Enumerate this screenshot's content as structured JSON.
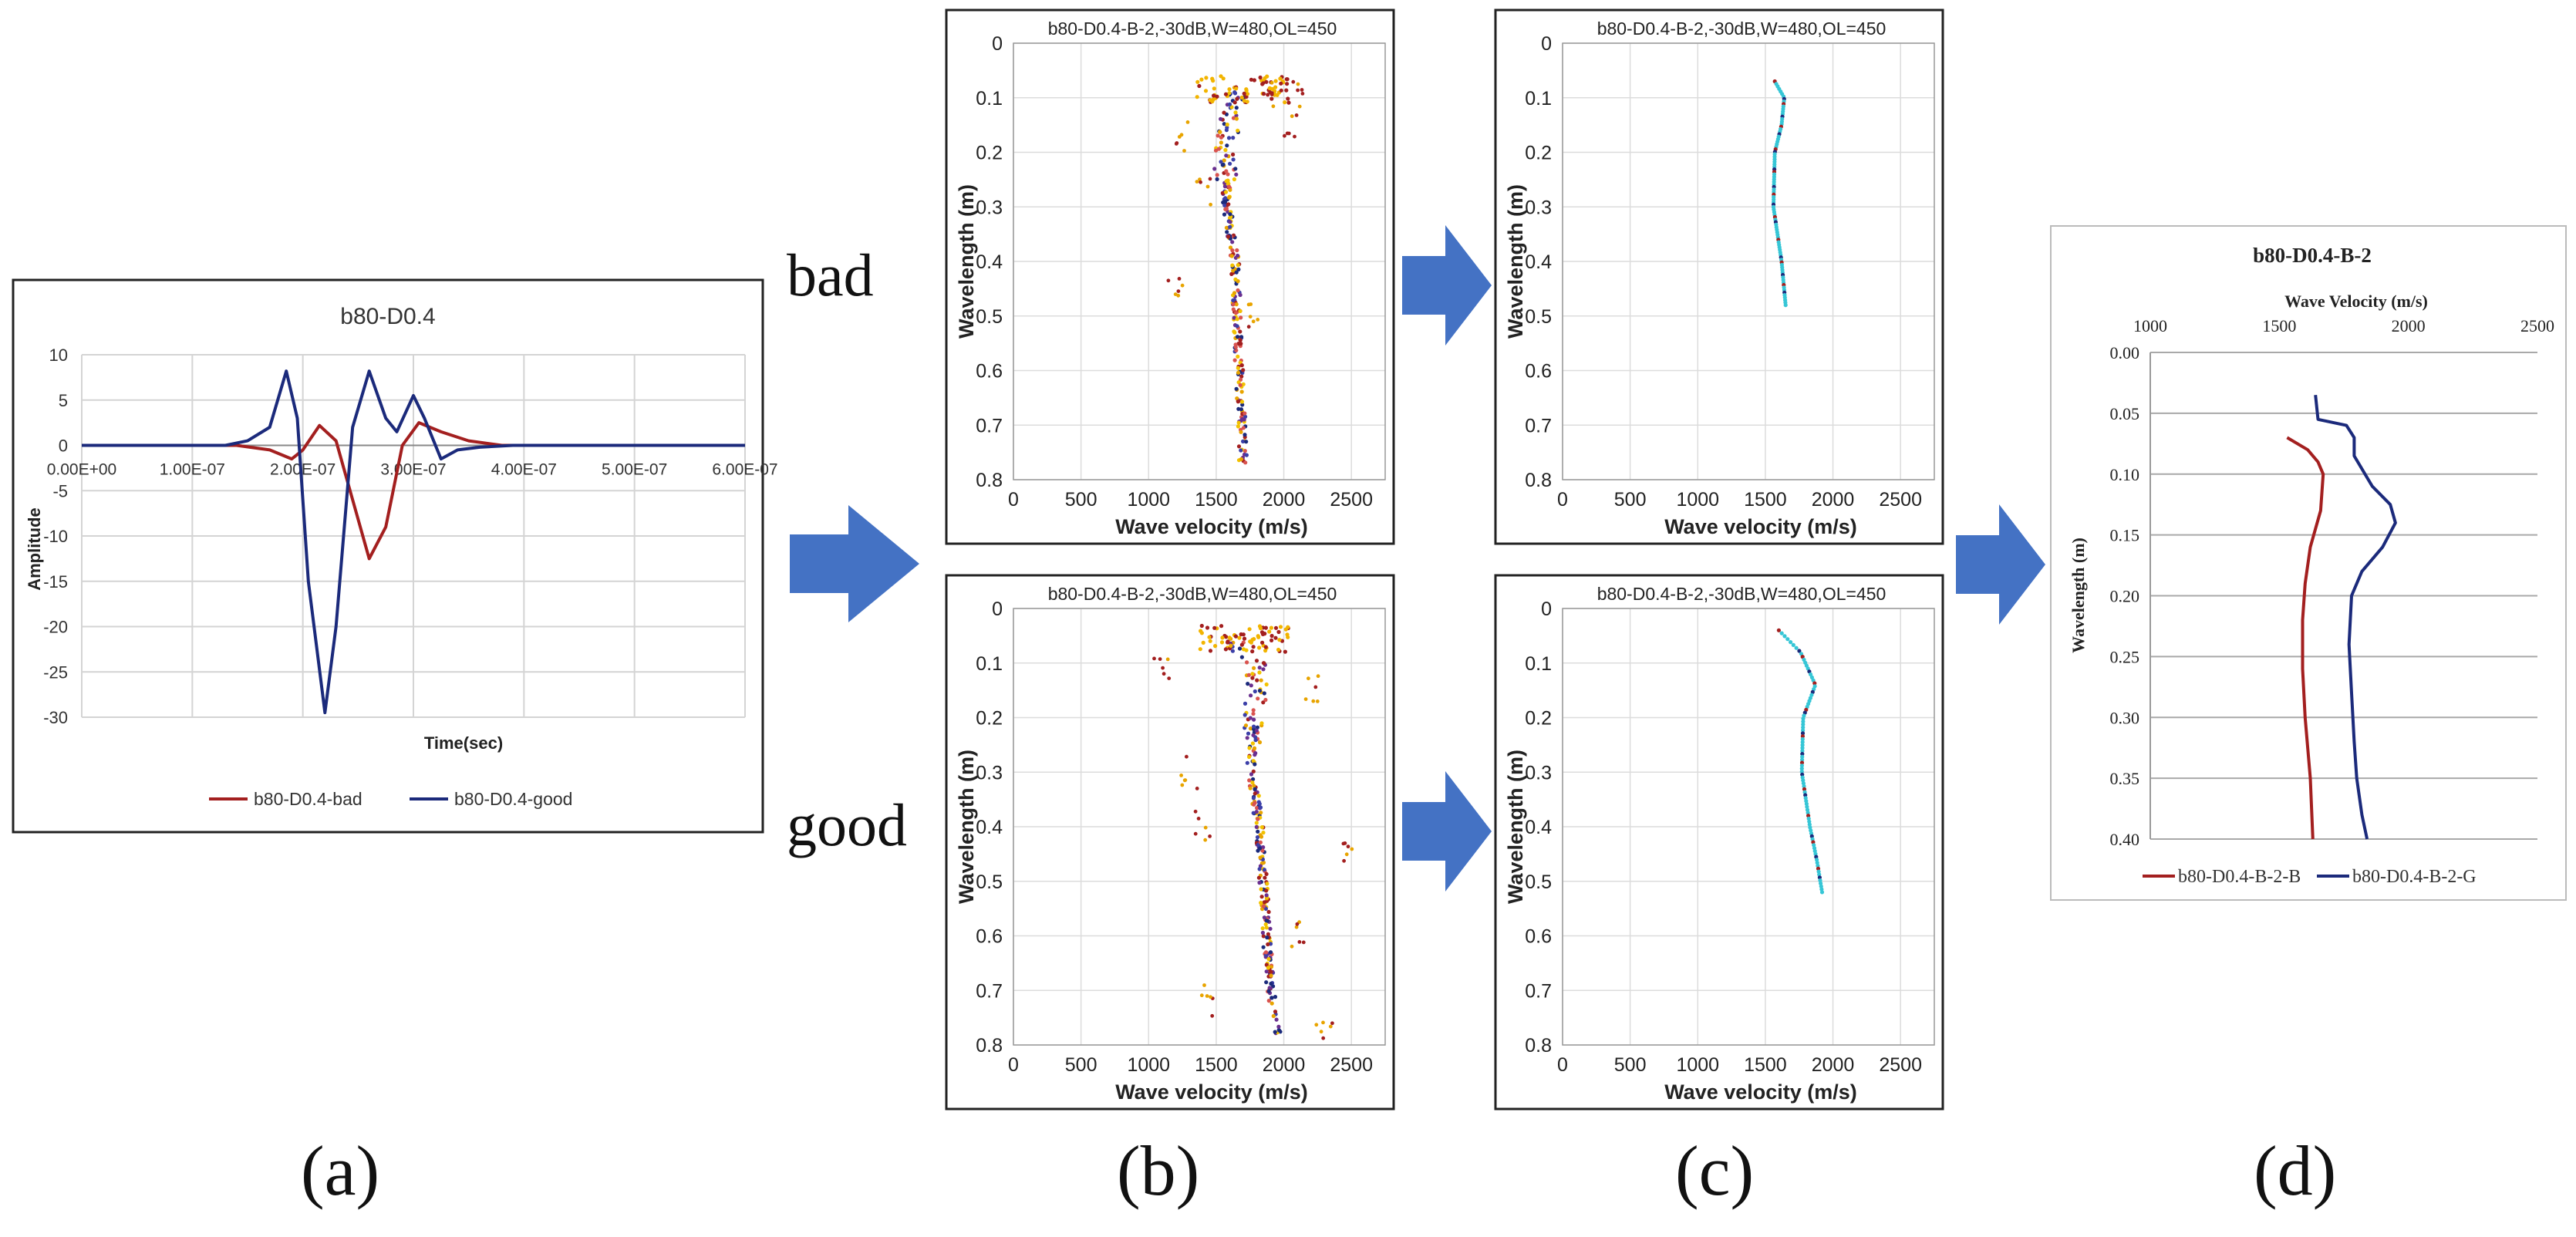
{
  "labels": {
    "bad": "bad",
    "good": "good",
    "panels": [
      "(a)",
      "(b)",
      "(c)",
      "(d)"
    ]
  },
  "colors": {
    "bad_line": "#a31f1f",
    "good_line": "#1b2a7b",
    "arrow": "#4472c4",
    "grid": "#d0d0d0",
    "cyan": "#36c6d6"
  },
  "chart_data": [
    {
      "id": "a",
      "type": "line",
      "title": "b80-D0.4",
      "xlabel": "Time(sec)",
      "ylabel": "Amplitude",
      "xlim": [
        0,
        6e-07
      ],
      "ylim": [
        -30,
        10
      ],
      "xticks": [
        "0.00E+00",
        "1.00E-07",
        "2.00E-07",
        "3.00E-07",
        "4.00E-07",
        "5.00E-07",
        "6.00E-07"
      ],
      "yticks": [
        "10",
        "5",
        "0",
        "-5",
        "-10",
        "-15",
        "-20",
        "-25",
        "-30"
      ],
      "series": [
        {
          "name": "b80-D0.4-bad",
          "x": [
            0,
            1.4e-07,
            1.7e-07,
            1.9e-07,
            2e-07,
            2.15e-07,
            2.3e-07,
            2.45e-07,
            2.6e-07,
            2.75e-07,
            2.9e-07,
            3.05e-07,
            3.25e-07,
            3.5e-07,
            3.8e-07,
            4e-07,
            6e-07
          ],
          "y": [
            0,
            0,
            -0.5,
            -1.5,
            -0.5,
            2.2,
            0.5,
            -6,
            -12.5,
            -9,
            0,
            2.5,
            1.5,
            0.5,
            0,
            0,
            0
          ]
        },
        {
          "name": "b80-D0.4-good",
          "x": [
            0,
            1.3e-07,
            1.5e-07,
            1.7e-07,
            1.85e-07,
            1.95e-07,
            2.05e-07,
            2.2e-07,
            2.3e-07,
            2.45e-07,
            2.6e-07,
            2.75e-07,
            2.85e-07,
            3e-07,
            3.1e-07,
            3.25e-07,
            3.4e-07,
            3.6e-07,
            3.9e-07,
            6e-07
          ],
          "y": [
            0,
            0,
            0.5,
            2,
            8.2,
            3,
            -15,
            -29.5,
            -20,
            2,
            8.2,
            3,
            1.5,
            5.5,
            3,
            -1.5,
            -0.5,
            -0.2,
            0,
            0
          ]
        }
      ]
    },
    {
      "id": "b-bad",
      "type": "scatter",
      "title": "b80-D0.4-B-2,-30dB,W=480,OL=450",
      "xlabel": "Wave velocity (m/s)",
      "ylabel": "Wavelength (m)",
      "xlim": [
        0,
        2750
      ],
      "ylim": [
        0,
        0.8
      ],
      "xticks": [
        "0",
        "500",
        "1000",
        "1500",
        "2000",
        "2500"
      ],
      "yticks": [
        "0",
        "0.1",
        "0.2",
        "0.3",
        "0.4",
        "0.5",
        "0.6",
        "0.7",
        "0.8"
      ],
      "trend": [
        [
          1680,
          0.08
        ],
        [
          1600,
          0.14
        ],
        [
          1560,
          0.2
        ],
        [
          1580,
          0.3
        ],
        [
          1640,
          0.4
        ],
        [
          1660,
          0.55
        ],
        [
          1690,
          0.7
        ],
        [
          1700,
          0.78
        ]
      ],
      "fan": [
        [
          1250,
          0.17
        ],
        [
          1200,
          0.44
        ],
        [
          2050,
          0.16
        ],
        [
          1900,
          0.09
        ],
        [
          2100,
          0.1
        ],
        [
          1400,
          0.27
        ],
        [
          1800,
          0.5
        ]
      ]
    },
    {
      "id": "c-bad",
      "type": "scatter",
      "title": "b80-D0.4-B-2,-30dB,W=480,OL=450",
      "xlabel": "Wave velocity (m/s)",
      "ylabel": "Wavelength (m)",
      "xlim": [
        0,
        2750
      ],
      "ylim": [
        0,
        0.8
      ],
      "xticks": [
        "0",
        "500",
        "1000",
        "1500",
        "2000",
        "2500"
      ],
      "yticks": [
        "0",
        "0.1",
        "0.2",
        "0.3",
        "0.4",
        "0.5",
        "0.6",
        "0.7",
        "0.8"
      ],
      "trend": [
        [
          1570,
          0.07
        ],
        [
          1640,
          0.1
        ],
        [
          1620,
          0.15
        ],
        [
          1570,
          0.2
        ],
        [
          1560,
          0.3
        ],
        [
          1620,
          0.4
        ],
        [
          1650,
          0.48
        ]
      ]
    },
    {
      "id": "b-good",
      "type": "scatter",
      "title": "b80-D0.4-B-2,-30dB,W=480,OL=450",
      "xlabel": "Wave velocity (m/s)",
      "ylabel": "Wavelength (m)",
      "xlim": [
        0,
        2750
      ],
      "ylim": [
        0,
        0.8
      ],
      "xticks": [
        "0",
        "500",
        "1000",
        "1500",
        "2000",
        "2500"
      ],
      "yticks": [
        "0",
        "0.1",
        "0.2",
        "0.3",
        "0.4",
        "0.5",
        "0.6",
        "0.7",
        "0.8"
      ],
      "trend": [
        [
          1600,
          0.05
        ],
        [
          1780,
          0.1
        ],
        [
          1820,
          0.15
        ],
        [
          1760,
          0.2
        ],
        [
          1760,
          0.3
        ],
        [
          1820,
          0.4
        ],
        [
          1860,
          0.55
        ],
        [
          1900,
          0.7
        ],
        [
          1950,
          0.78
        ]
      ],
      "fan": [
        [
          1100,
          0.12
        ],
        [
          1400,
          0.4
        ],
        [
          1450,
          0.72
        ],
        [
          2200,
          0.15
        ],
        [
          2450,
          0.45
        ],
        [
          2300,
          0.78
        ],
        [
          1300,
          0.3
        ],
        [
          2100,
          0.6
        ]
      ]
    },
    {
      "id": "c-good",
      "type": "scatter",
      "title": "b80-D0.4-B-2,-30dB,W=480,OL=450",
      "xlabel": "Wave velocity (m/s)",
      "ylabel": "Wavelength (m)",
      "xlim": [
        0,
        2750
      ],
      "ylim": [
        0,
        0.8
      ],
      "xticks": [
        "0",
        "500",
        "1000",
        "1500",
        "2000",
        "2500"
      ],
      "yticks": [
        "0",
        "0.1",
        "0.2",
        "0.3",
        "0.4",
        "0.5",
        "0.6",
        "0.7",
        "0.8"
      ],
      "trend": [
        [
          1600,
          0.04
        ],
        [
          1760,
          0.08
        ],
        [
          1870,
          0.14
        ],
        [
          1780,
          0.2
        ],
        [
          1770,
          0.3
        ],
        [
          1830,
          0.4
        ],
        [
          1880,
          0.46
        ],
        [
          1920,
          0.52
        ]
      ]
    },
    {
      "id": "d",
      "type": "line",
      "title": "b80-D0.4-B-2",
      "xlabel": "Wave Velocity (m/s)",
      "ylabel": "Wavelength (m)",
      "xlim": [
        1000,
        2500
      ],
      "ylim": [
        0,
        0.4
      ],
      "xticks": [
        "1000",
        "1500",
        "2000",
        "2500"
      ],
      "yticks": [
        "0.00",
        "0.05",
        "0.10",
        "0.15",
        "0.20",
        "0.25",
        "0.30",
        "0.35",
        "0.40"
      ],
      "series": [
        {
          "name": "b80-D0.4-B-2-B",
          "x": [
            1530,
            1610,
            1650,
            1670,
            1660,
            1620,
            1600,
            1590,
            1590,
            1600,
            1620,
            1630
          ],
          "y": [
            0.07,
            0.08,
            0.09,
            0.1,
            0.13,
            0.16,
            0.19,
            0.22,
            0.26,
            0.3,
            0.35,
            0.4
          ]
        },
        {
          "name": "b80-D0.4-B-2-G",
          "x": [
            1640,
            1650,
            1760,
            1790,
            1790,
            1860,
            1930,
            1950,
            1900,
            1820,
            1780,
            1770,
            1780,
            1790,
            1800,
            1820,
            1840
          ],
          "y": [
            0.035,
            0.055,
            0.06,
            0.07,
            0.085,
            0.11,
            0.125,
            0.14,
            0.16,
            0.18,
            0.2,
            0.24,
            0.28,
            0.32,
            0.35,
            0.38,
            0.4
          ]
        }
      ]
    }
  ]
}
